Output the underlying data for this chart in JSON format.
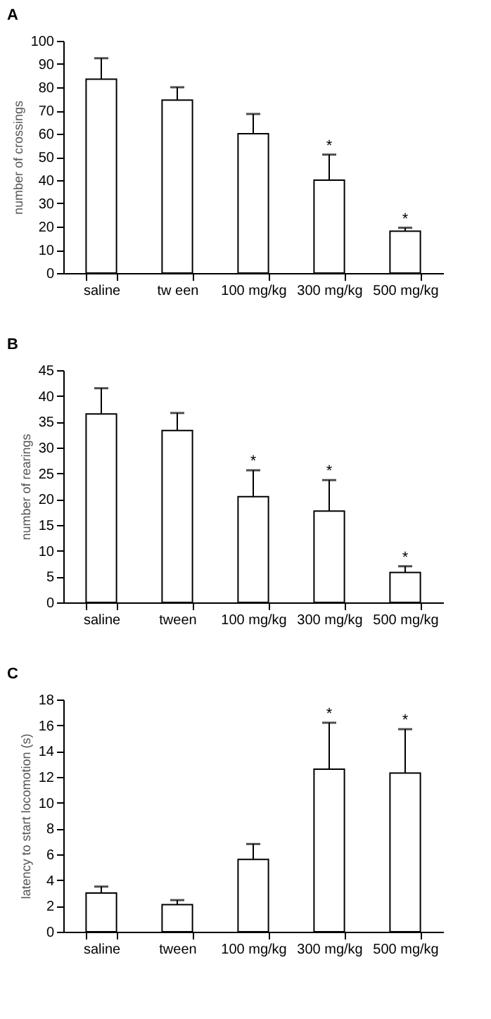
{
  "chart_data": [
    {
      "type": "bar",
      "title": "A",
      "ylabel": "number of crossings",
      "categories": [
        "saline",
        "tw een",
        "100 mg/kg",
        "300 mg/kg",
        "500 mg/kg"
      ],
      "values": [
        83.5,
        74.5,
        60,
        40,
        18
      ],
      "errors": [
        [
          83.5,
          92.5
        ],
        [
          74.5,
          80
        ],
        [
          60,
          68.5
        ],
        [
          40,
          51
        ],
        [
          18,
          19.5
        ]
      ],
      "color": "#ffffff",
      "ylim": [
        0,
        100
      ],
      "yticks": [
        0,
        10,
        20,
        30,
        40,
        50,
        60,
        70,
        80,
        90,
        100
      ],
      "grid": false,
      "annotations": [
        {
          "text": "*",
          "x": "300 mg/kg",
          "y": 51
        },
        {
          "text": "*",
          "x": "500 mg/kg",
          "y": 19.5
        }
      ]
    },
    {
      "type": "bar",
      "title": "B",
      "ylabel": "number of rearings",
      "categories": [
        "saline",
        "tween",
        "100 mg/kg",
        "300 mg/kg",
        "500 mg/kg"
      ],
      "values": [
        36.5,
        33.3,
        20.5,
        17.7,
        5.8
      ],
      "errors": [
        [
          36.5,
          41.5
        ],
        [
          33.3,
          36.7
        ],
        [
          20.5,
          25.6
        ],
        [
          17.7,
          23.7
        ],
        [
          5.8,
          7
        ]
      ],
      "color": "#ffffff",
      "ylim": [
        0,
        45
      ],
      "yticks": [
        0,
        5,
        10,
        15,
        20,
        25,
        30,
        35,
        40,
        45
      ],
      "grid": false,
      "annotations": [
        {
          "text": "*",
          "x": "100 mg/kg",
          "y": 25.6
        },
        {
          "text": "*",
          "x": "300 mg/kg",
          "y": 23.7
        },
        {
          "text": "*",
          "x": "500 mg/kg",
          "y": 7
        }
      ]
    },
    {
      "type": "bar",
      "title": "C",
      "ylabel": "latency to start locomotion (s)",
      "categories": [
        "saline",
        "tween",
        "100 mg/kg",
        "300 mg/kg",
        "500 mg/kg"
      ],
      "values": [
        3.0,
        2.1,
        5.6,
        12.6,
        12.3
      ],
      "errors": [
        [
          3.0,
          3.5
        ],
        [
          2.1,
          2.45
        ],
        [
          5.6,
          6.8
        ],
        [
          12.6,
          16.2
        ],
        [
          12.3,
          15.7
        ]
      ],
      "color": "#ffffff",
      "ylim": [
        0,
        18
      ],
      "yticks": [
        0,
        2,
        4,
        6,
        8,
        10,
        12,
        14,
        16,
        18
      ],
      "grid": false,
      "annotations": [
        {
          "text": "*",
          "x": "300 mg/kg",
          "y": 16.2
        },
        {
          "text": "*",
          "x": "500 mg/kg",
          "y": 15.7
        }
      ]
    }
  ]
}
